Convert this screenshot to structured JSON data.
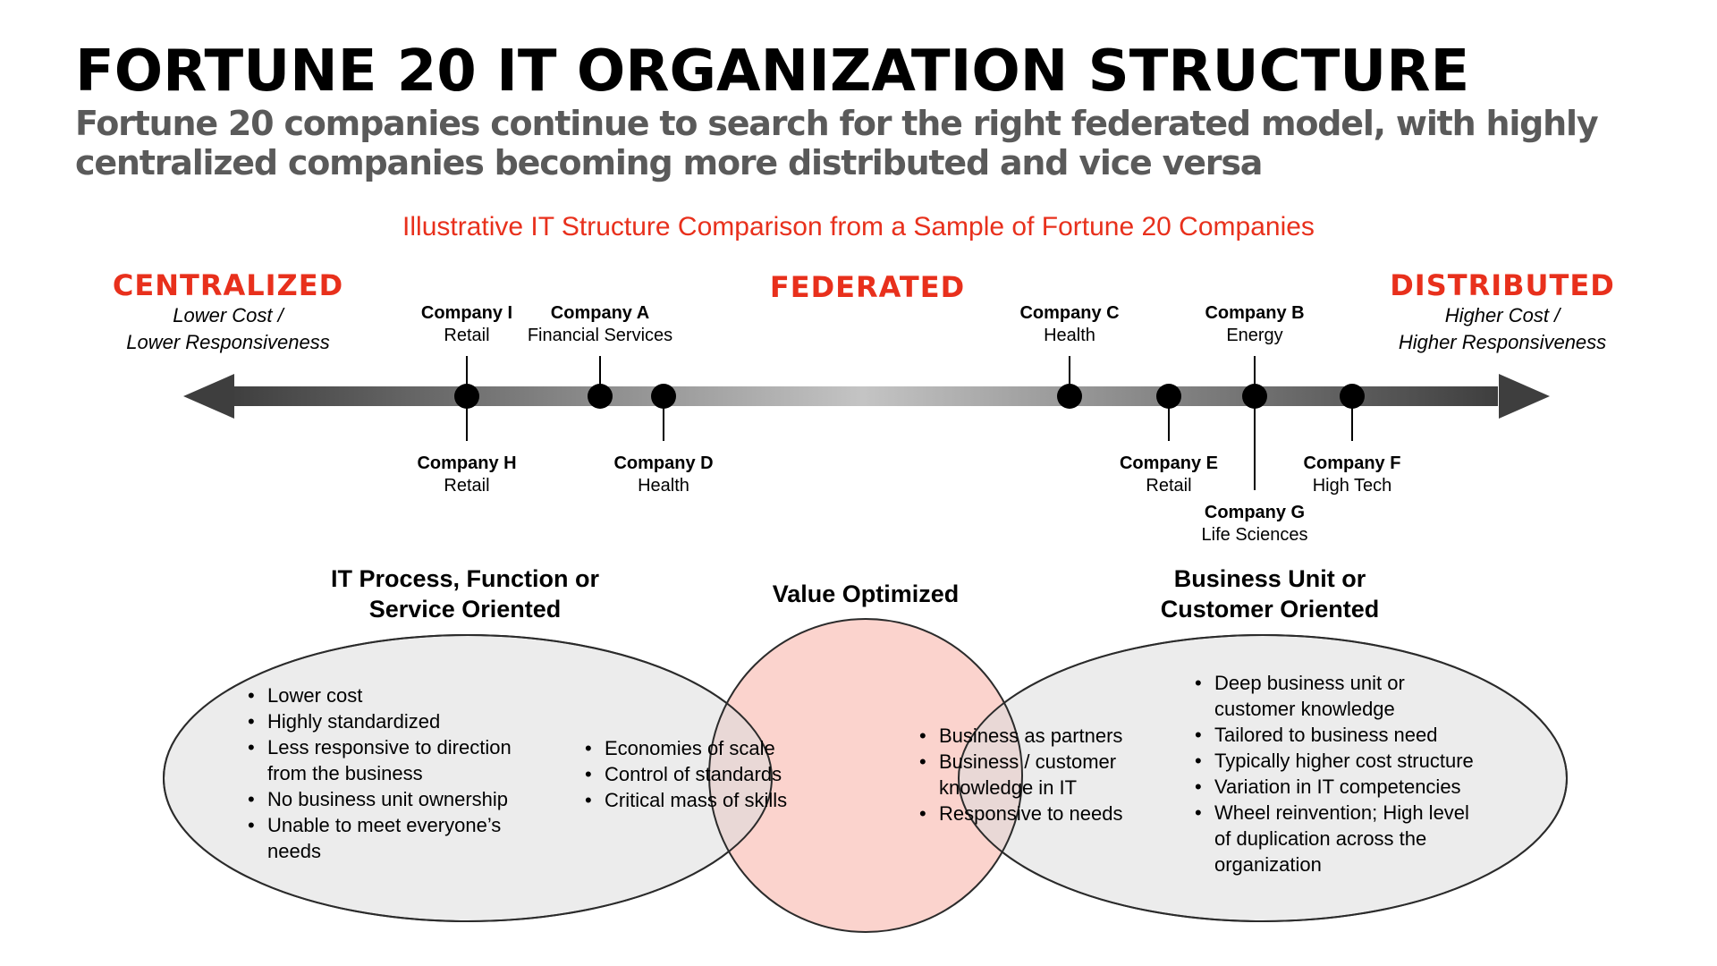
{
  "title": "FORTUNE 20 IT ORGANIZATION STRUCTURE",
  "subtitle": "Fortune 20 companies continue to search for the right federated model, with highly centralized companies becoming more distributed and vice versa",
  "caption": "Illustrative IT Structure Comparison from a Sample of Fortune 20 Companies",
  "spectrum": {
    "left": {
      "heading": "CENTRALIZED",
      "note_1": "Lower Cost /",
      "note_2": "Lower Responsiveness"
    },
    "middle": {
      "heading": "FEDERATED"
    },
    "right": {
      "heading": "DISTRIBUTED",
      "note_1": "Higher Cost /",
      "note_2": "Higher Responsiveness"
    }
  },
  "companies": [
    {
      "name": "Company I",
      "sector": "Retail"
    },
    {
      "name": "Company A",
      "sector": "Financial Services"
    },
    {
      "name": "Company C",
      "sector": "Health"
    },
    {
      "name": "Company B",
      "sector": "Energy"
    },
    {
      "name": "Company H",
      "sector": "Retail"
    },
    {
      "name": "Company D",
      "sector": "Health"
    },
    {
      "name": "Company E",
      "sector": "Retail"
    },
    {
      "name": "Company F",
      "sector": "High Tech"
    },
    {
      "name": "Company G",
      "sector": "Life Sciences"
    }
  ],
  "venn": {
    "left": {
      "title_1": "IT Process, Function or",
      "title_2": "Service Oriented",
      "bullets": [
        "Lower cost",
        "Highly standardized",
        "Less responsive to direction from the business",
        "No business unit ownership",
        "Unable to meet everyone’s needs"
      ]
    },
    "center": {
      "title": "Value Optimized",
      "overlap_left": [
        "Economies of scale",
        "Control of standards",
        "Critical mass of skills"
      ],
      "overlap_right": [
        "Business as partners",
        "Business / customer knowledge in IT",
        "Responsive to needs"
      ]
    },
    "right": {
      "title_1": "Business Unit or",
      "title_2": "Customer Oriented",
      "bullets": [
        "Deep business unit or customer knowledge",
        "Tailored to business need",
        "Typically higher cost structure",
        "Variation in IT competencies",
        "Wheel reinvention; High level of duplication across the organization"
      ]
    }
  },
  "colors": {
    "accent_red": "#e8301c",
    "subtitle_gray": "#5a5a5a",
    "outer_circle_fill": "#ececec",
    "center_circle_fill": "#fbd3cd",
    "overlap_fill": "#e9d8d6"
  }
}
